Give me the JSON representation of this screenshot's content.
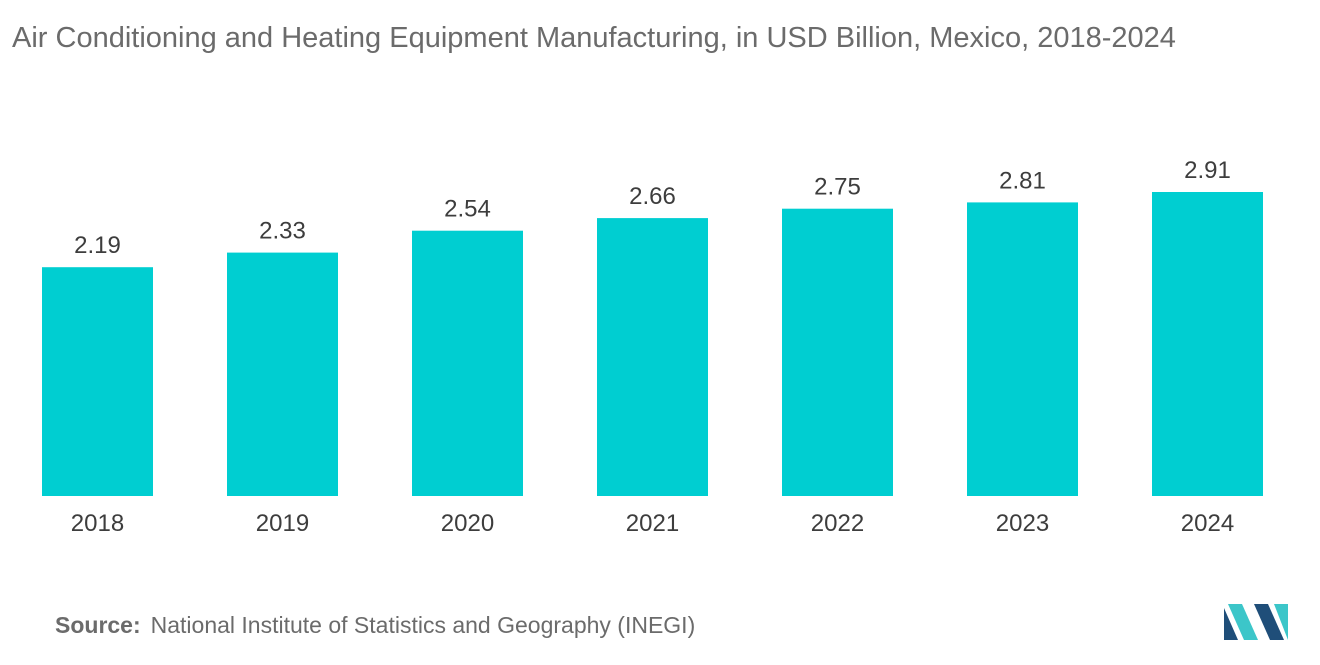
{
  "title": "Air Conditioning and Heating Equipment Manufacturing, in USD Billion, Mexico, 2018-2024",
  "source": {
    "label": "Source:",
    "text": "National Institute of Statistics and Geography (INEGI)"
  },
  "logo": {
    "icon": "mordor-intelligence-logo-icon"
  },
  "colors": {
    "bar": "#00CED1",
    "baseline": "#d0d0d0",
    "logo_dark": "#1f4e79",
    "logo_light": "#3cc6c9"
  },
  "chart_data": {
    "type": "bar",
    "title": "Air Conditioning and Heating Equipment Manufacturing, in USD Billion, Mexico, 2018-2024",
    "categories": [
      "2018",
      "2019",
      "2020",
      "2021",
      "2022",
      "2023",
      "2024"
    ],
    "values": [
      2.19,
      2.33,
      2.54,
      2.66,
      2.75,
      2.81,
      2.91
    ],
    "data_labels": [
      "2.19",
      "2.33",
      "2.54",
      "2.66",
      "2.75",
      "2.81",
      "2.91"
    ],
    "xlabel": "",
    "ylabel": "",
    "ylim": [
      0,
      2.91
    ],
    "grid": false,
    "legend": "none"
  }
}
